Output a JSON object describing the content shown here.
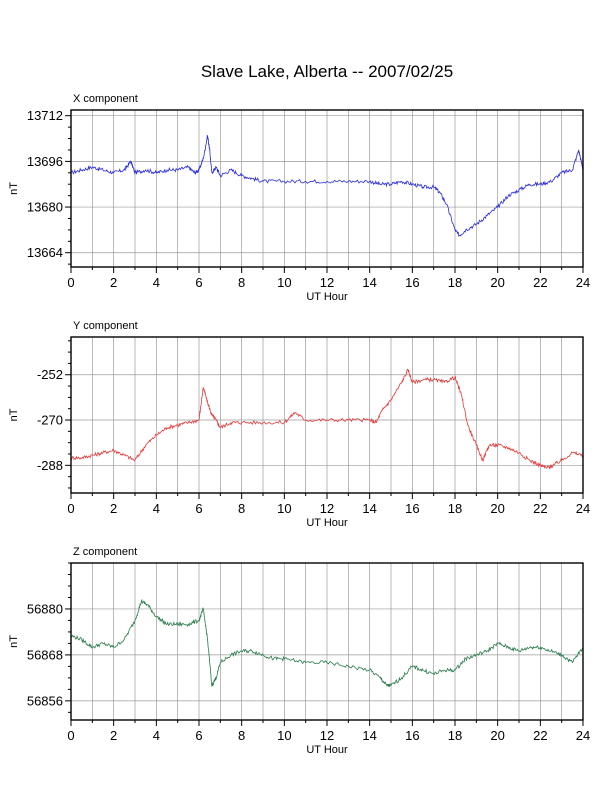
{
  "title": "Slave Lake, Alberta -- 2007/02/25",
  "chart_data": [
    {
      "type": "line",
      "panel_label": "X component",
      "xlabel": "UT Hour",
      "ylabel": "nT",
      "xlim": [
        0,
        24
      ],
      "ylim": [
        13659,
        13714
      ],
      "x_ticks": [
        0,
        2,
        4,
        6,
        8,
        10,
        12,
        14,
        16,
        18,
        20,
        22,
        24
      ],
      "y_ticks": [
        13664,
        13680,
        13696,
        13712
      ],
      "grid": true,
      "color": "#2b2bdc",
      "x": [
        0,
        0.5,
        1,
        1.5,
        2,
        2.5,
        2.8,
        3,
        3.5,
        4,
        4.5,
        5,
        5.5,
        5.8,
        6,
        6.2,
        6.4,
        6.5,
        6.6,
        6.8,
        7,
        7.5,
        8,
        8.5,
        9,
        10,
        11,
        12,
        13,
        14,
        14.5,
        15,
        15.5,
        16,
        16.5,
        17,
        17.3,
        17.6,
        18,
        18.2,
        18.5,
        19,
        19.5,
        20,
        20.5,
        21,
        21.5,
        22,
        22.5,
        23,
        23.5,
        23.8,
        24
      ],
      "values": [
        13692,
        13693,
        13694,
        13693,
        13692,
        13693,
        13696,
        13692,
        13693,
        13692,
        13693,
        13693,
        13694,
        13692,
        13693,
        13697,
        13705,
        13700,
        13692,
        13694,
        13691,
        13693,
        13691,
        13690,
        13689,
        13689,
        13689,
        13689,
        13689,
        13689,
        13688,
        13688,
        13689,
        13688,
        13687,
        13687,
        13685,
        13681,
        13672,
        13670,
        13672,
        13674,
        13677,
        13680,
        13684,
        13686,
        13688,
        13688,
        13689,
        13692,
        13693,
        13700,
        13693
      ]
    },
    {
      "type": "line",
      "panel_label": "Y component",
      "xlabel": "UT Hour",
      "ylabel": "nT",
      "xlim": [
        0,
        24
      ],
      "ylim": [
        -299,
        -237
      ],
      "x_ticks": [
        0,
        2,
        4,
        6,
        8,
        10,
        12,
        14,
        16,
        18,
        20,
        22,
        24
      ],
      "y_ticks": [
        -288,
        -270,
        -252
      ],
      "grid": true,
      "color": "#e23b3b",
      "x": [
        0,
        0.5,
        1,
        1.5,
        2,
        2.5,
        3,
        3.5,
        4,
        4.5,
        5,
        5.5,
        6,
        6.2,
        6.4,
        6.6,
        6.8,
        7,
        7.5,
        8,
        9,
        10,
        10.5,
        11,
        12,
        13,
        14,
        14.3,
        14.6,
        15,
        15.5,
        15.8,
        16,
        16.5,
        17,
        17.5,
        18,
        18.3,
        18.6,
        19,
        19.3,
        19.6,
        20,
        20.5,
        21,
        21.5,
        22,
        22.3,
        22.6,
        23,
        23.5,
        24
      ],
      "values": [
        -285,
        -285,
        -284,
        -283,
        -282,
        -284,
        -286,
        -280,
        -276,
        -273,
        -272,
        -271,
        -270,
        -257,
        -263,
        -268,
        -270,
        -273,
        -271,
        -271,
        -271,
        -271,
        -267,
        -270,
        -270,
        -270,
        -270,
        -271,
        -266,
        -262,
        -255,
        -250,
        -255,
        -254,
        -254,
        -255,
        -253,
        -260,
        -272,
        -280,
        -286,
        -280,
        -280,
        -281,
        -283,
        -286,
        -288,
        -289,
        -288,
        -286,
        -283,
        -284
      ]
    },
    {
      "type": "line",
      "panel_label": "Z component",
      "xlabel": "UT Hour",
      "ylabel": "nT",
      "xlim": [
        0,
        24
      ],
      "ylim": [
        56851,
        56892
      ],
      "x_ticks": [
        0,
        2,
        4,
        6,
        8,
        10,
        12,
        14,
        16,
        18,
        20,
        22,
        24
      ],
      "y_ticks": [
        56856,
        56868,
        56880
      ],
      "grid": true,
      "color": "#2a7a4c",
      "x": [
        0,
        0.5,
        1,
        1.5,
        2,
        2.5,
        3,
        3.3,
        3.6,
        4,
        4.5,
        5,
        5.5,
        6,
        6.2,
        6.4,
        6.6,
        6.8,
        7,
        7.5,
        8,
        8.5,
        9,
        9.5,
        10,
        11,
        12,
        13,
        14,
        14.5,
        14.8,
        15,
        15.5,
        16,
        16.5,
        17,
        17.5,
        18,
        18.5,
        19,
        19.5,
        20,
        20.5,
        21,
        21.5,
        22,
        22.5,
        23,
        23.5,
        24
      ],
      "values": [
        56873,
        56872,
        56870,
        56871,
        56870,
        56872,
        56877,
        56882,
        56881,
        56878,
        56876,
        56876,
        56876,
        56877,
        56880,
        56872,
        56860,
        56862,
        56866,
        56868,
        56869,
        56869,
        56868,
        56867,
        56867,
        56866,
        56866,
        56865,
        56864,
        56862,
        56860,
        56860,
        56862,
        56865,
        56864,
        56863,
        56864,
        56864,
        56867,
        56868,
        56869,
        56871,
        56870,
        56869,
        56870,
        56870,
        56869,
        56868,
        56866,
        56870
      ]
    }
  ]
}
